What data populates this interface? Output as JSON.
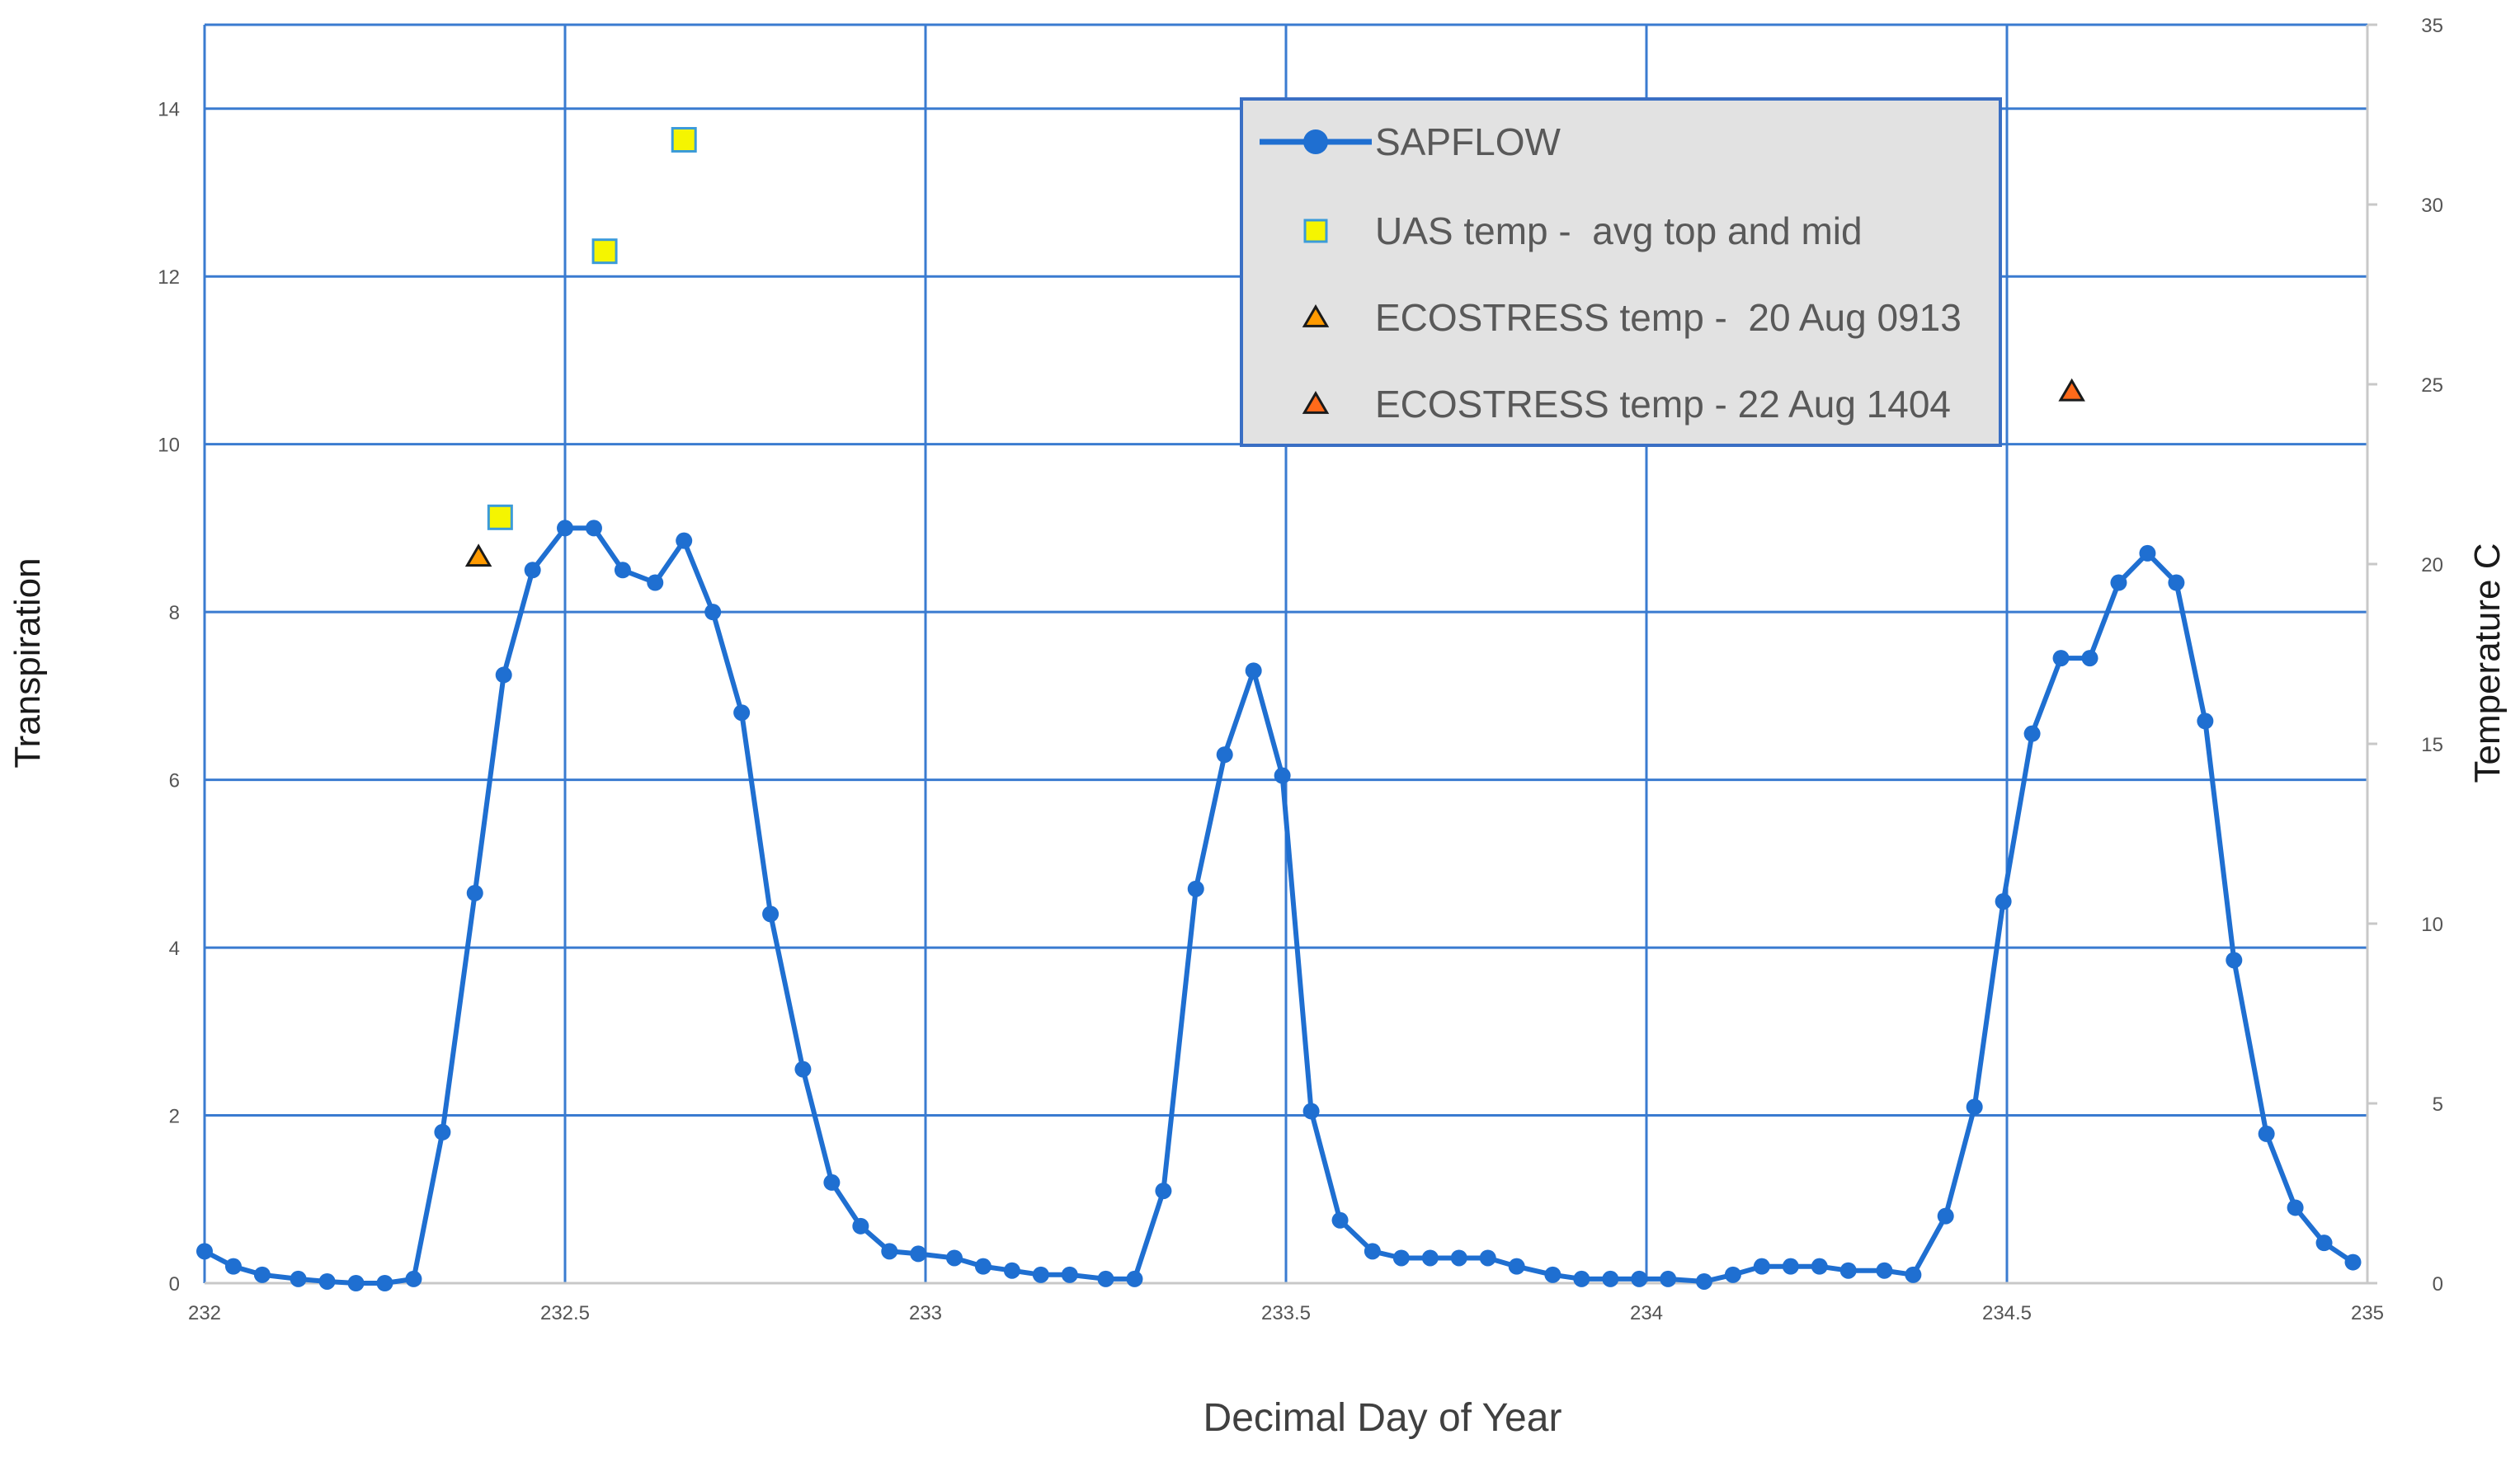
{
  "chart_data": {
    "type": "line",
    "xlabel": "Decimal Day of Year",
    "ylabel": "Transpiration",
    "y2label": "Temperature C",
    "xlim": [
      232,
      235
    ],
    "ylim": [
      0,
      15
    ],
    "y2lim": [
      0,
      35
    ],
    "x_ticks": [
      "232",
      "232.5",
      "233",
      "233.5",
      "234",
      "234.5",
      "235"
    ],
    "y_ticks": [
      "0",
      "2",
      "4",
      "6",
      "8",
      "10",
      "12",
      "14"
    ],
    "y2_ticks": [
      "0",
      "5",
      "10",
      "15",
      "20",
      "25",
      "30",
      "35"
    ],
    "grid": true,
    "legend_position": "top-center",
    "series": [
      {
        "name": "SAPFLOW",
        "axis": "left",
        "color": "#1f6fd1",
        "marker": "circle",
        "x": [
          232.0,
          232.04,
          232.08,
          232.13,
          232.17,
          232.21,
          232.25,
          232.29,
          232.33,
          232.375,
          232.415,
          232.455,
          232.5,
          232.54,
          232.58,
          232.625,
          232.665,
          232.705,
          232.745,
          232.785,
          232.83,
          232.87,
          232.91,
          232.95,
          232.99,
          233.04,
          233.08,
          233.12,
          233.16,
          233.2,
          233.25,
          233.29,
          233.33,
          233.375,
          233.415,
          233.455,
          233.495,
          233.535,
          233.575,
          233.62,
          233.66,
          233.7,
          233.74,
          233.78,
          233.82,
          233.87,
          233.91,
          233.95,
          233.99,
          234.03,
          234.08,
          234.12,
          234.16,
          234.2,
          234.24,
          234.28,
          234.33,
          234.37,
          234.415,
          234.455,
          234.495,
          234.535,
          234.575,
          234.615,
          234.655,
          234.695,
          234.735,
          234.775,
          234.815,
          234.86,
          234.9,
          234.94,
          234.98
        ],
        "values": [
          0.38,
          0.2,
          0.1,
          0.05,
          0.02,
          0.0,
          0.0,
          0.05,
          1.8,
          4.65,
          7.25,
          8.5,
          9.0,
          9.0,
          8.5,
          8.35,
          8.85,
          8.0,
          6.8,
          4.4,
          2.55,
          1.2,
          0.68,
          0.38,
          0.35,
          0.3,
          0.2,
          0.15,
          0.1,
          0.1,
          0.05,
          0.05,
          1.1,
          4.7,
          6.3,
          7.3,
          6.05,
          2.05,
          0.75,
          0.38,
          0.3,
          0.3,
          0.3,
          0.3,
          0.2,
          0.1,
          0.05,
          0.05,
          0.05,
          0.05,
          0.02,
          0.1,
          0.2,
          0.2,
          0.2,
          0.15,
          0.15,
          0.1,
          0.8,
          2.1,
          4.55,
          6.55,
          7.45,
          7.45,
          8.35,
          8.7,
          8.35,
          6.7,
          3.85,
          1.78,
          0.9,
          0.48,
          0.25
        ]
      },
      {
        "name": "UAS temp -  avg top and mid",
        "axis": "right",
        "color": "#f5f500",
        "edge_color": "#3b9bd9",
        "marker": "square",
        "x": [
          232.41,
          232.555,
          232.665
        ],
        "values": [
          21.3,
          28.7,
          31.8
        ]
      },
      {
        "name": "ECOSTRESS temp -  20 Aug 0913",
        "axis": "right",
        "color": "#ff9a00",
        "edge_color": "#1a1a1a",
        "marker": "triangle",
        "x": [
          232.38
        ],
        "values": [
          20.2
        ]
      },
      {
        "name": "ECOSTRESS temp - 22 Aug 1404",
        "axis": "right",
        "color": "#ff6a1a",
        "edge_color": "#1a1a1a",
        "marker": "triangle",
        "x": [
          234.59
        ],
        "values": [
          24.8
        ]
      }
    ]
  }
}
